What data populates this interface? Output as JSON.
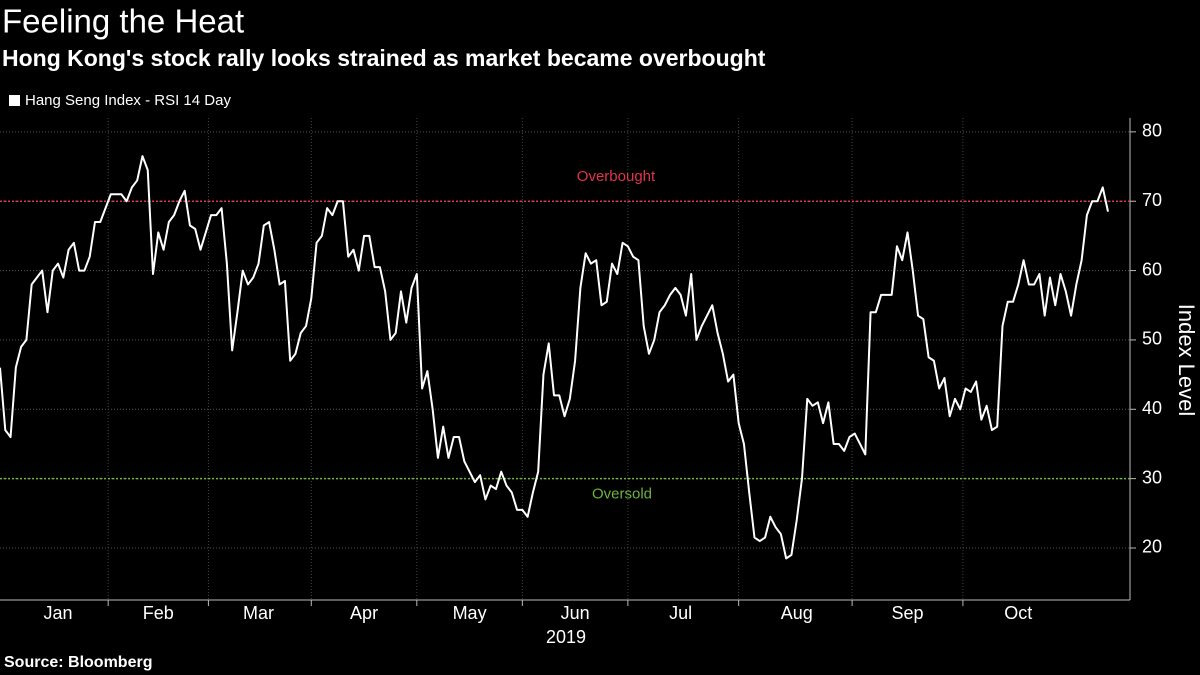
{
  "chart_data": {
    "type": "line",
    "title": "Feeling the Heat",
    "subtitle": "Hong Kong's stock rally looks strained as market became overbought",
    "ylabel": "Index Level",
    "xlabel": "2019",
    "source": "Source: Bloomberg",
    "ylim": [
      12.5,
      82
    ],
    "yticks": [
      20,
      30,
      40,
      50,
      60,
      70,
      80
    ],
    "grid": true,
    "reference_lines": [
      {
        "value": 70,
        "label": "Overbought",
        "color": "#e0344a"
      },
      {
        "value": 30,
        "label": "Oversold",
        "color": "#6cb33f"
      }
    ],
    "categories": [
      null,
      null,
      null,
      null,
      null,
      null,
      null,
      null,
      null,
      null,
      null,
      "Jan",
      null,
      null,
      null,
      null,
      null,
      null,
      null,
      null,
      null,
      null,
      null,
      null,
      null,
      null,
      null,
      null,
      null,
      null,
      "Feb",
      null,
      null,
      null,
      null,
      null,
      null,
      null,
      null,
      null,
      null,
      null,
      null,
      null,
      null,
      null,
      null,
      null,
      null,
      "Mar",
      null,
      null,
      null,
      null,
      null,
      null,
      null,
      null,
      null,
      null,
      null,
      null,
      null,
      null,
      null,
      null,
      null,
      null,
      null,
      "Apr",
      null,
      null,
      null,
      null,
      null,
      null,
      null,
      null,
      null,
      null,
      null,
      null,
      null,
      null,
      null,
      null,
      null,
      null,
      null,
      "May",
      null,
      null,
      null,
      null,
      null,
      null,
      null,
      null,
      null,
      null,
      null,
      null,
      null,
      null,
      null,
      null,
      null,
      null,
      null,
      "Jun",
      null,
      null,
      null,
      null,
      null,
      null,
      null,
      null,
      null,
      null,
      null,
      null,
      null,
      null,
      null,
      null,
      null,
      null,
      null,
      "Jul",
      null,
      null,
      null,
      null,
      null,
      null,
      null,
      null,
      null,
      null,
      null,
      null,
      null,
      null,
      null,
      null,
      null,
      null,
      null,
      null,
      null,
      "Aug",
      null,
      null,
      null,
      null,
      null,
      null,
      null,
      null,
      null,
      null,
      null,
      null,
      null,
      null,
      null,
      null,
      null,
      null,
      null,
      null,
      "Sep",
      null,
      null,
      null,
      null,
      null,
      null,
      null,
      null,
      null,
      null,
      null,
      null,
      null,
      null,
      null,
      null,
      null,
      null,
      null,
      null,
      "Oct",
      null,
      null,
      null,
      null,
      null,
      null,
      null,
      null,
      null,
      null,
      null,
      null,
      null,
      null,
      null,
      null,
      null
    ],
    "series": [
      {
        "name": "Hang Seng Index - RSI 14 Day",
        "color": "#ffffff",
        "values": [
          46,
          37,
          36,
          46,
          49,
          50,
          58,
          59,
          60,
          54,
          60,
          61,
          59,
          63,
          64,
          60,
          60,
          62,
          67,
          67,
          69,
          71,
          71,
          71,
          70,
          72,
          73,
          76.5,
          74.5,
          59.5,
          65.5,
          63,
          67,
          68,
          70,
          71.5,
          66.5,
          66,
          63,
          65.5,
          68,
          68,
          69,
          61,
          48.5,
          54,
          60,
          58,
          59,
          61,
          66.5,
          67,
          63,
          58,
          58.5,
          47,
          48,
          51,
          52,
          56,
          64,
          65,
          69,
          68,
          70,
          70,
          62,
          63,
          60,
          65,
          65,
          60.5,
          60.5,
          57,
          50,
          51,
          57,
          52.5,
          57.5,
          59.5,
          43,
          45.5,
          40,
          33,
          37.5,
          33,
          36,
          36,
          32.5,
          31,
          29.5,
          30.5,
          27,
          29,
          28.5,
          31,
          29,
          28,
          25.5,
          25.5,
          24.5,
          28,
          31,
          45,
          49.5,
          42,
          42,
          39,
          41.5,
          47,
          57.5,
          62.5,
          61,
          61.5,
          55,
          55.5,
          61,
          59.5,
          64,
          63.5,
          62,
          61.5,
          52,
          48,
          50,
          54,
          55,
          56.5,
          57.5,
          56.5,
          53.5,
          59.5,
          50,
          52,
          53.5,
          55,
          51,
          48,
          44,
          45,
          38,
          35,
          28,
          21.5,
          21,
          21.5,
          24.5,
          23,
          22,
          18.5,
          19,
          24,
          30,
          41.5,
          40.5,
          41,
          38,
          41,
          35,
          35,
          34,
          36,
          36.5,
          35,
          33.5,
          54,
          54,
          56.5,
          56.5,
          56.5,
          63.5,
          61.5,
          65.5,
          60,
          53.5,
          53,
          47.5,
          47,
          43,
          44.5,
          39,
          41.5,
          40,
          43,
          42.5,
          44,
          38.5,
          40.5,
          37,
          37.5,
          52,
          55.5,
          55.5,
          58,
          61.5,
          58,
          58,
          59.5,
          53.5,
          59,
          55,
          59.5,
          57,
          53.5,
          58,
          61.5,
          68,
          70,
          70,
          72,
          68.5
        ]
      }
    ]
  }
}
